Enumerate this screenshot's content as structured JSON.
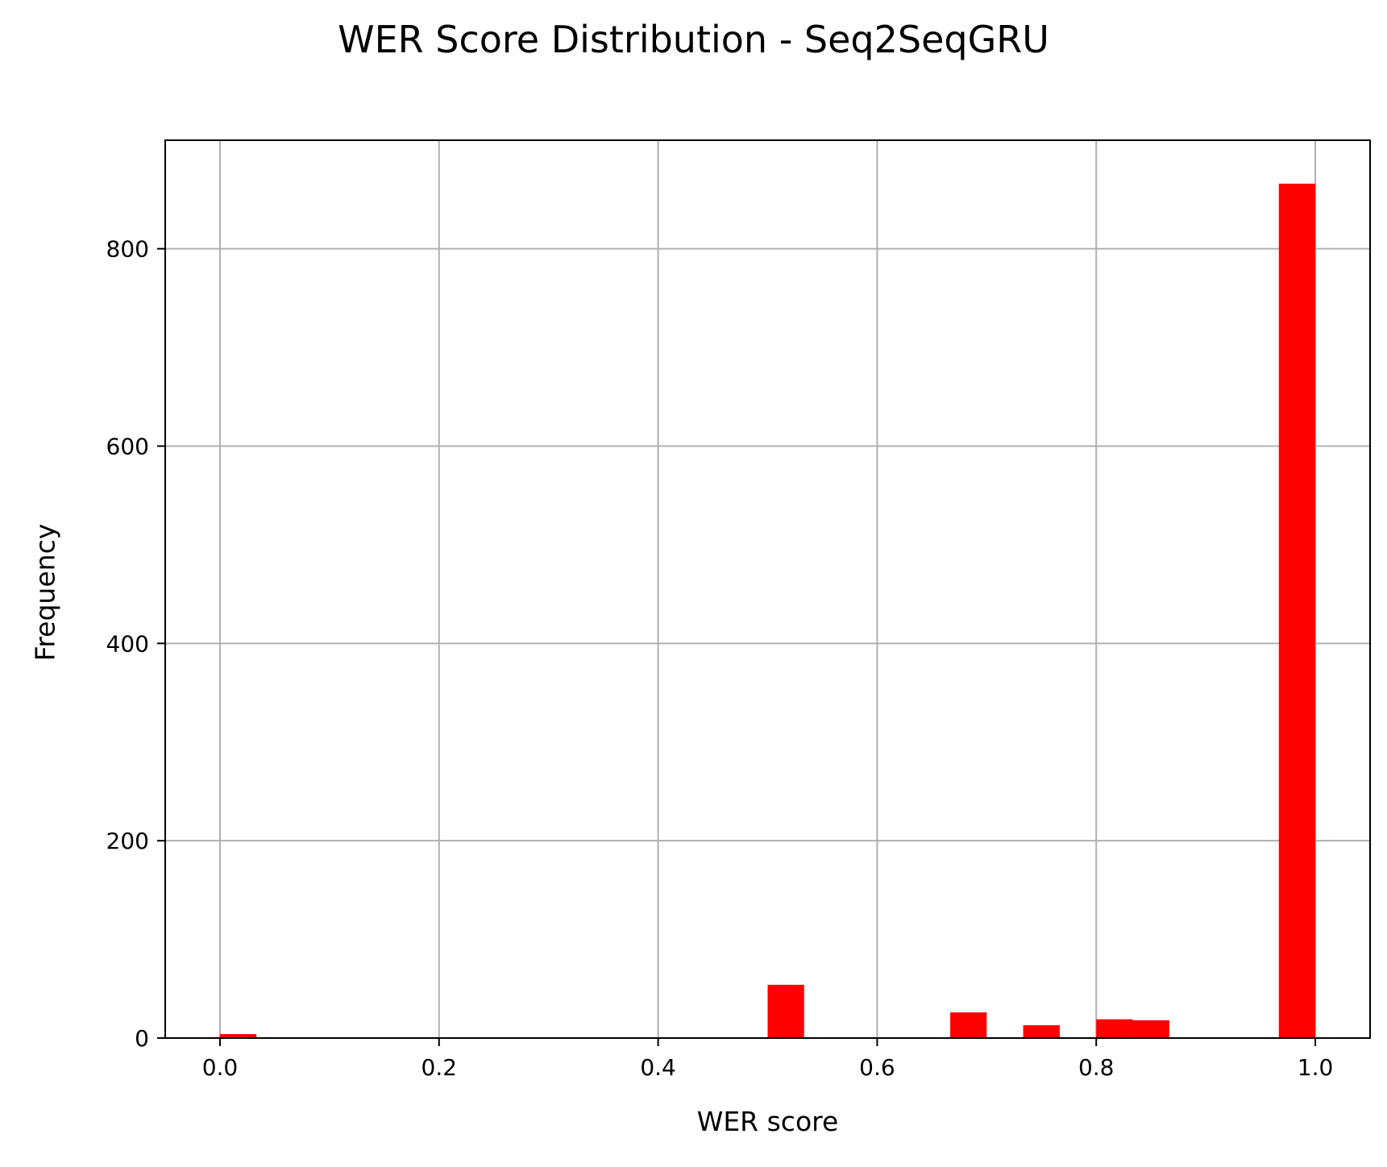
{
  "chart_data": {
    "type": "bar",
    "title": "WER Score Distribution - Seq2SeqGRU",
    "xlabel": "WER score",
    "ylabel": "Frequency",
    "xlim": [
      -0.05,
      1.05
    ],
    "ylim": [
      0,
      910
    ],
    "x_ticks": [
      0.0,
      0.2,
      0.4,
      0.6,
      0.8,
      1.0
    ],
    "x_tick_labels": [
      "0.0",
      "0.2",
      "0.4",
      "0.6",
      "0.8",
      "1.0"
    ],
    "y_ticks": [
      0,
      200,
      400,
      600,
      800
    ],
    "y_tick_labels": [
      "0",
      "200",
      "400",
      "600",
      "800"
    ],
    "grid": true,
    "bar_color": "#ff0000",
    "bin_width": 0.0333,
    "bins": [
      {
        "x0": 0.0,
        "x1": 0.0333,
        "value": 4
      },
      {
        "x0": 0.5,
        "x1": 0.5333,
        "value": 54
      },
      {
        "x0": 0.6667,
        "x1": 0.7,
        "value": 26
      },
      {
        "x0": 0.7333,
        "x1": 0.7667,
        "value": 13
      },
      {
        "x0": 0.8,
        "x1": 0.8333,
        "value": 19
      },
      {
        "x0": 0.8333,
        "x1": 0.8667,
        "value": 18
      },
      {
        "x0": 0.9667,
        "x1": 1.0,
        "value": 866
      }
    ]
  }
}
